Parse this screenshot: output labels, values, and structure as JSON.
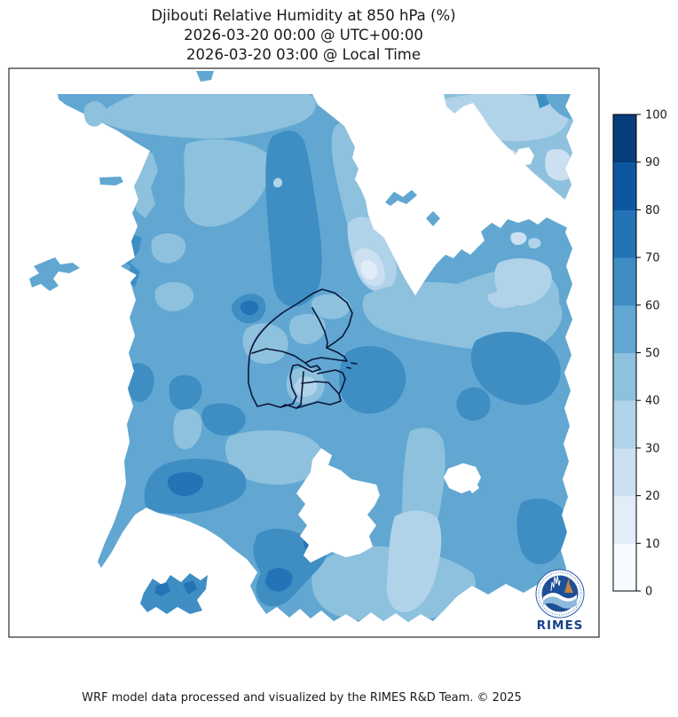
{
  "title": {
    "line1": "Djibouti Relative Humidity at 850 hPa (%)",
    "line2": "2026-03-20 00:00 @ UTC+00:00",
    "line3": "2026-03-20 03:00 @ Local Time"
  },
  "footer": {
    "credit": "WRF model data processed and visualized by the RIMES R&D Team. © 2025"
  },
  "logo": {
    "wordmark": "RIMES"
  },
  "colors": {
    "background": "#ffffff",
    "frame": "#000000",
    "boundary": "#0c1538",
    "masked": "#ffffff",
    "title_text": "#1a1a1a",
    "logo_ring": "#2a5ca8",
    "logo_disc": "#1d4f97",
    "logo_wave": "#8fb9dd",
    "logo_accent": "#c08246",
    "logo_text": "#16418c"
  },
  "chart_data": {
    "type": "heatmap",
    "subtype": "filled-contour-map",
    "title": "Djibouti Relative Humidity at 850 hPa (%)",
    "variable": "Relative Humidity",
    "pressure_level": "850 hPa",
    "units": "%",
    "region": "Djibouti",
    "time_utc": "2026-03-20 00:00 @ UTC+00:00",
    "time_local": "2026-03-20 03:00 @ Local Time",
    "colormap": "Blues",
    "levels": [
      0,
      10,
      20,
      30,
      40,
      50,
      60,
      70,
      80,
      90,
      100
    ],
    "palette": [
      {
        "range": "0-10",
        "color": "#f7fbff"
      },
      {
        "range": "10-20",
        "color": "#e1edf8"
      },
      {
        "range": "20-30",
        "color": "#cce0f1"
      },
      {
        "range": "30-40",
        "color": "#b1d3e9"
      },
      {
        "range": "40-50",
        "color": "#8dc1dd"
      },
      {
        "range": "50-60",
        "color": "#61a7d2"
      },
      {
        "range": "60-70",
        "color": "#3e8ec4"
      },
      {
        "range": "70-80",
        "color": "#2473b6"
      },
      {
        "range": "80-90",
        "color": "#0d57a2"
      },
      {
        "range": "90-100",
        "color": "#083d7c"
      }
    ],
    "colorbar": {
      "orientation": "vertical",
      "min": 0,
      "max": 100,
      "ticks": [
        0,
        10,
        20,
        30,
        40,
        50,
        60,
        70,
        80,
        90,
        100
      ]
    },
    "field_summary": {
      "dominant_band_pct": "50-60",
      "masked_areas": "white = no model data (west column, top margin, large NE blob, SW wedge, bottom and right margins)",
      "features": [
        {
          "area": "sinuous vertical band centre-left (x~300-360)",
          "rh_band": "60-70"
        },
        {
          "area": "narrow strip hugging left edge of NE masked blob",
          "rh_band": "60-80"
        },
        {
          "area": "north-east quadrant",
          "rh_band": "30-50"
        },
        {
          "area": "pale pocket below masked blob (~420,300)",
          "rh_band": "0-30"
        },
        {
          "area": "south-east of Djibouti admin boundaries",
          "rh_band": "60-70"
        },
        {
          "area": "right-centre patch (~560-640, 290-350)",
          "rh_band": "30-40"
        },
        {
          "area": "right-centre blob (~530-640, 370-460)",
          "rh_band": "60-70"
        },
        {
          "area": "bottom-centre dark band and fingers",
          "rh_band": "60-80"
        },
        {
          "area": "directly south of the borders",
          "rh_band": "40-50"
        },
        {
          "area": "bottom-right light pocket",
          "rh_band": "30-50"
        }
      ]
    }
  }
}
